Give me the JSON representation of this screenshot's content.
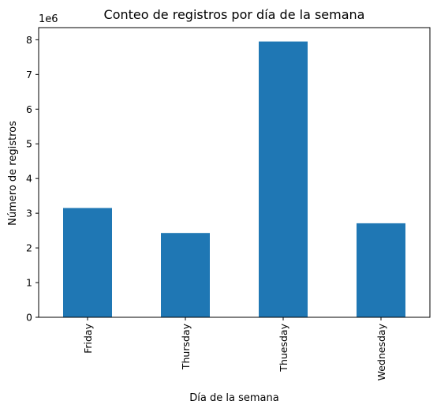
{
  "chart_data": {
    "type": "bar",
    "title": "Conteo de registros por día de la semana",
    "xlabel": "Día de la semana",
    "ylabel": "Número de registros",
    "y_multiplier": "1e6",
    "categories": [
      "Friday",
      "Thursday",
      "Thuesday",
      "Wednesday"
    ],
    "values": [
      3150000,
      2430000,
      7950000,
      2710000
    ],
    "ylim": [
      0,
      8350000
    ],
    "yticks": [
      0,
      1,
      2,
      3,
      4,
      5,
      6,
      7,
      8
    ],
    "bar_color": "#1f77b4",
    "grid": false,
    "legend": "none"
  }
}
